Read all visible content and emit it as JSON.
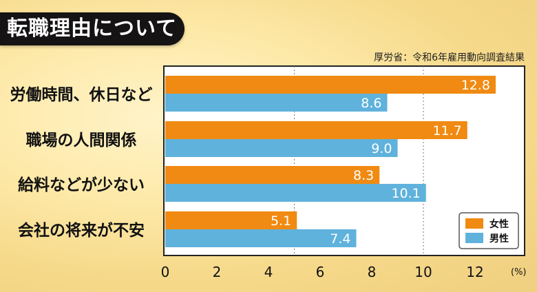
{
  "title": "転職理由について",
  "source": "厚労省：令和6年雇用動向調査結果",
  "colors": {
    "female": "#f08a12",
    "male": "#5fb2dc",
    "plot_bg": "#ffffff",
    "axis": "#222222"
  },
  "chart_data": {
    "type": "bar",
    "orientation": "horizontal",
    "categories": [
      "労働時間、休日など",
      "職場の人間関係",
      "給料などが少ない",
      "会社の将来が不安"
    ],
    "series": [
      {
        "name": "女性",
        "values": [
          12.8,
          11.7,
          8.3,
          5.1
        ],
        "value_labels": [
          "12.8",
          "11.7",
          "8.3",
          "5.1"
        ]
      },
      {
        "name": "男性",
        "values": [
          8.6,
          9.0,
          10.1,
          7.4
        ],
        "value_labels": [
          "8.6",
          "9.0",
          "10.1",
          "7.4"
        ]
      }
    ],
    "xlim": [
      0,
      13.5
    ],
    "xticks": [
      0,
      2,
      4,
      6,
      8,
      10,
      12
    ],
    "x_unit": "(%)",
    "gridlines": [
      5,
      10
    ],
    "legend_position": "bottom-right"
  }
}
